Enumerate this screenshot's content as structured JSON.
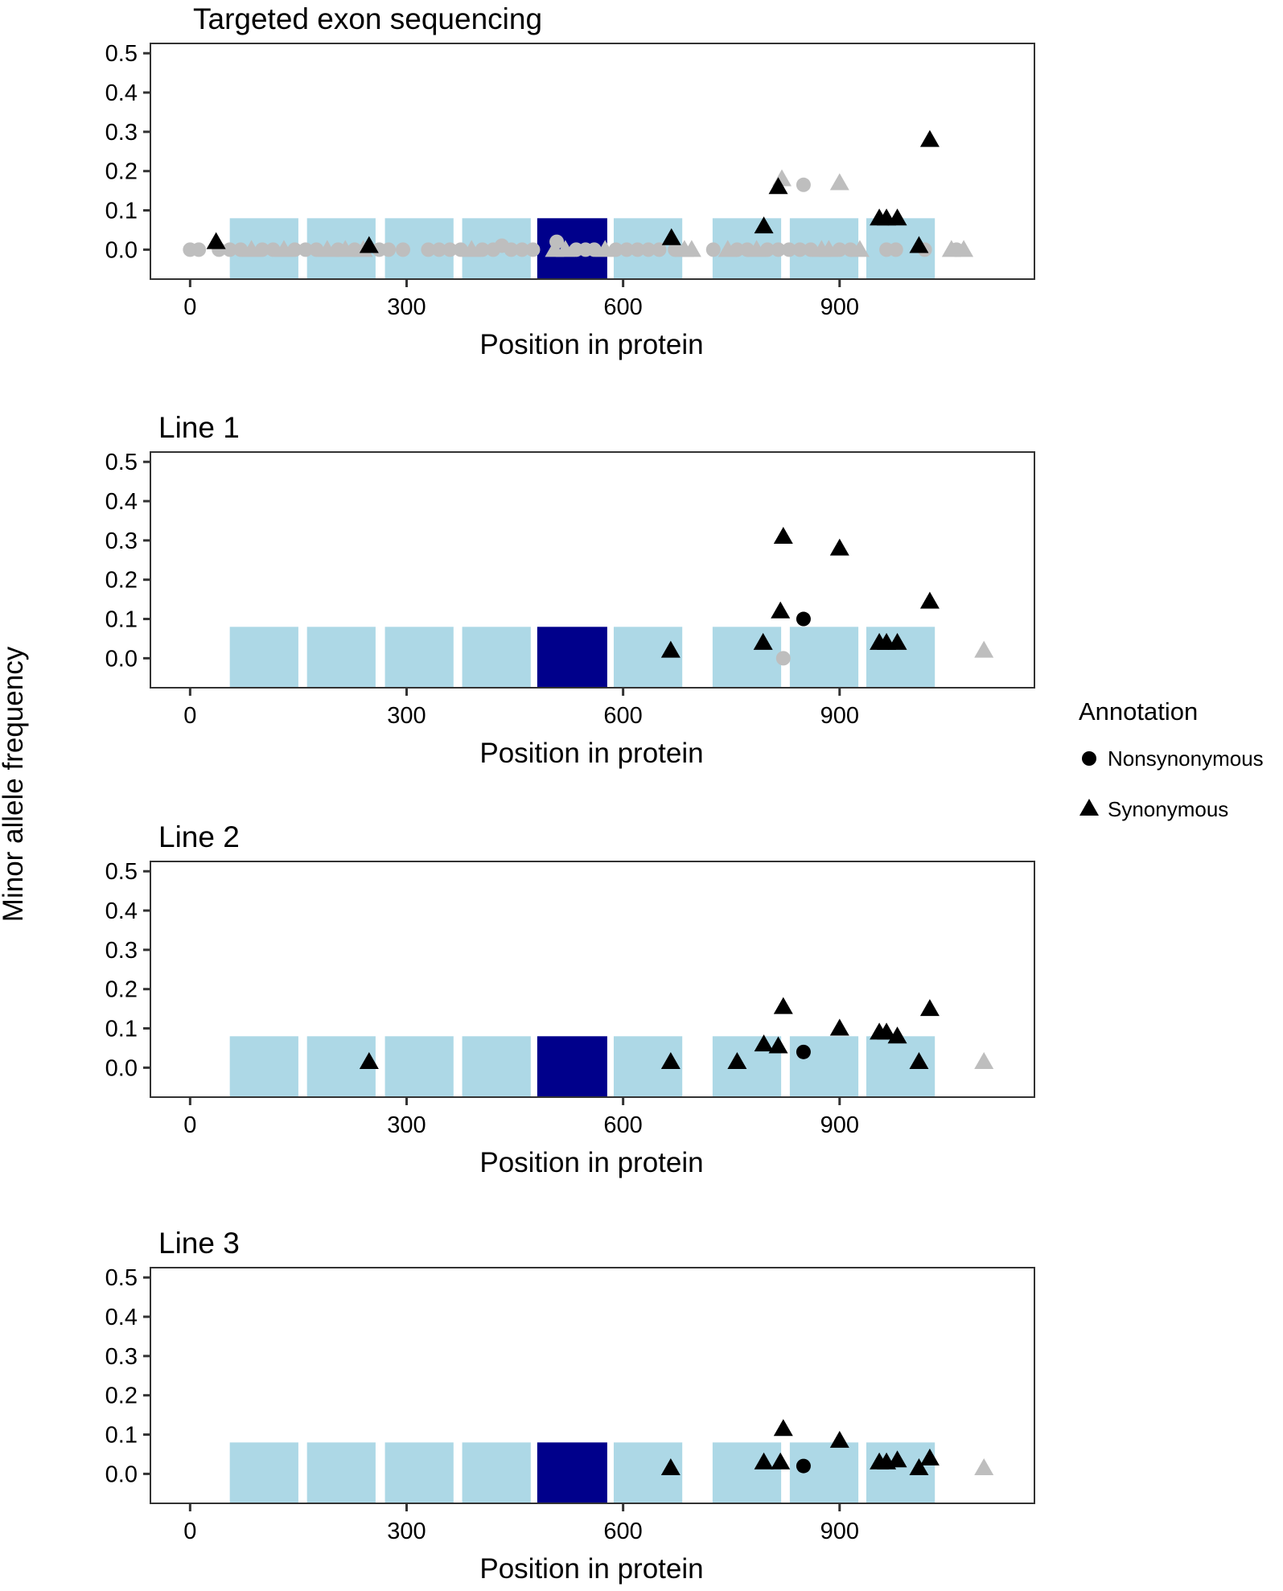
{
  "chart_data": {
    "type": "scatter",
    "ylabel": "Minor allele frequency",
    "legend": {
      "title": "Annotation",
      "position": "right",
      "entries": [
        {
          "label": "Nonsynonymous",
          "shape": "circle"
        },
        {
          "label": "Synonymous",
          "shape": "triangle"
        }
      ]
    },
    "colors": {
      "domain": "#add8e6",
      "domain_highlight": "#00008b",
      "significant": "#000000",
      "nonsignificant": "#bebebe",
      "axis": "#333333"
    },
    "domains": [
      {
        "start": 55,
        "end": 150,
        "highlight": false
      },
      {
        "start": 162,
        "end": 257,
        "highlight": false
      },
      {
        "start": 270,
        "end": 365,
        "highlight": false
      },
      {
        "start": 377,
        "end": 472,
        "highlight": false
      },
      {
        "start": 481,
        "end": 578,
        "highlight": true
      },
      {
        "start": 587,
        "end": 682,
        "highlight": false
      },
      {
        "start": 724,
        "end": 819,
        "highlight": false
      },
      {
        "start": 831,
        "end": 926,
        "highlight": false
      },
      {
        "start": 937,
        "end": 1032,
        "highlight": false
      }
    ],
    "domain_height": 0.08,
    "panels": [
      {
        "title": "Targeted exon sequencing",
        "xlabel": "Position in protein",
        "xlim": [
          -55,
          1170
        ],
        "ylim": [
          -0.075,
          0.525
        ],
        "xticks": [
          0,
          300,
          600,
          900
        ],
        "xtick_labels": [
          "0",
          "300",
          "600",
          "900"
        ],
        "yticks": [
          0.0,
          0.1,
          0.2,
          0.3,
          0.4,
          0.5
        ],
        "ytick_labels": [
          "0.0",
          "0.1",
          "0.2",
          "0.3",
          "0.4",
          "0.5"
        ],
        "points": [
          {
            "x": 0,
            "y": 0.0,
            "shape": "circle",
            "sig": false
          },
          {
            "x": 12,
            "y": 0.0,
            "shape": "circle",
            "sig": false
          },
          {
            "x": 36,
            "y": 0.02,
            "shape": "triangle",
            "sig": true
          },
          {
            "x": 40,
            "y": 0.0,
            "shape": "circle",
            "sig": false
          },
          {
            "x": 55,
            "y": 0.0,
            "shape": "circle",
            "sig": false
          },
          {
            "x": 70,
            "y": 0.0,
            "shape": "circle",
            "sig": false
          },
          {
            "x": 85,
            "y": 0.0,
            "shape": "triangle",
            "sig": false
          },
          {
            "x": 100,
            "y": 0.0,
            "shape": "circle",
            "sig": false
          },
          {
            "x": 115,
            "y": 0.0,
            "shape": "circle",
            "sig": false
          },
          {
            "x": 130,
            "y": 0.0,
            "shape": "triangle",
            "sig": false
          },
          {
            "x": 145,
            "y": 0.0,
            "shape": "circle",
            "sig": false
          },
          {
            "x": 160,
            "y": 0.0,
            "shape": "circle",
            "sig": false
          },
          {
            "x": 175,
            "y": 0.0,
            "shape": "circle",
            "sig": false
          },
          {
            "x": 190,
            "y": 0.0,
            "shape": "triangle",
            "sig": false
          },
          {
            "x": 205,
            "y": 0.0,
            "shape": "circle",
            "sig": false
          },
          {
            "x": 215,
            "y": 0.0,
            "shape": "triangle",
            "sig": false
          },
          {
            "x": 228,
            "y": 0.0,
            "shape": "circle",
            "sig": false
          },
          {
            "x": 240,
            "y": 0.0,
            "shape": "triangle",
            "sig": false
          },
          {
            "x": 248,
            "y": 0.01,
            "shape": "triangle",
            "sig": true
          },
          {
            "x": 262,
            "y": 0.0,
            "shape": "circle",
            "sig": false
          },
          {
            "x": 275,
            "y": 0.0,
            "shape": "circle",
            "sig": false
          },
          {
            "x": 295,
            "y": 0.0,
            "shape": "circle",
            "sig": false
          },
          {
            "x": 330,
            "y": 0.0,
            "shape": "circle",
            "sig": false
          },
          {
            "x": 345,
            "y": 0.0,
            "shape": "circle",
            "sig": false
          },
          {
            "x": 360,
            "y": 0.0,
            "shape": "circle",
            "sig": false
          },
          {
            "x": 375,
            "y": 0.0,
            "shape": "circle",
            "sig": false
          },
          {
            "x": 390,
            "y": 0.0,
            "shape": "triangle",
            "sig": false
          },
          {
            "x": 405,
            "y": 0.0,
            "shape": "circle",
            "sig": false
          },
          {
            "x": 420,
            "y": 0.0,
            "shape": "circle",
            "sig": false
          },
          {
            "x": 432,
            "y": 0.01,
            "shape": "circle",
            "sig": false
          },
          {
            "x": 445,
            "y": 0.0,
            "shape": "circle",
            "sig": false
          },
          {
            "x": 460,
            "y": 0.0,
            "shape": "circle",
            "sig": false
          },
          {
            "x": 475,
            "y": 0.0,
            "shape": "circle",
            "sig": false
          },
          {
            "x": 508,
            "y": 0.02,
            "shape": "circle",
            "sig": false
          },
          {
            "x": 505,
            "y": 0.0,
            "shape": "triangle",
            "sig": false
          },
          {
            "x": 520,
            "y": 0.0,
            "shape": "triangle",
            "sig": false
          },
          {
            "x": 535,
            "y": 0.0,
            "shape": "circle",
            "sig": false
          },
          {
            "x": 548,
            "y": 0.0,
            "shape": "circle",
            "sig": false
          },
          {
            "x": 560,
            "y": 0.0,
            "shape": "circle",
            "sig": false
          },
          {
            "x": 575,
            "y": 0.0,
            "shape": "triangle",
            "sig": false
          },
          {
            "x": 590,
            "y": 0.0,
            "shape": "circle",
            "sig": false
          },
          {
            "x": 605,
            "y": 0.0,
            "shape": "circle",
            "sig": false
          },
          {
            "x": 620,
            "y": 0.0,
            "shape": "circle",
            "sig": false
          },
          {
            "x": 635,
            "y": 0.0,
            "shape": "circle",
            "sig": false
          },
          {
            "x": 650,
            "y": 0.0,
            "shape": "circle",
            "sig": false
          },
          {
            "x": 667,
            "y": 0.03,
            "shape": "triangle",
            "sig": true
          },
          {
            "x": 672,
            "y": 0.0,
            "shape": "circle",
            "sig": false
          },
          {
            "x": 685,
            "y": 0.0,
            "shape": "triangle",
            "sig": false
          },
          {
            "x": 695,
            "y": 0.0,
            "shape": "triangle",
            "sig": false
          },
          {
            "x": 725,
            "y": 0.0,
            "shape": "circle",
            "sig": false
          },
          {
            "x": 745,
            "y": 0.0,
            "shape": "triangle",
            "sig": false
          },
          {
            "x": 758,
            "y": 0.0,
            "shape": "circle",
            "sig": false
          },
          {
            "x": 772,
            "y": 0.0,
            "shape": "circle",
            "sig": false
          },
          {
            "x": 785,
            "y": 0.0,
            "shape": "triangle",
            "sig": false
          },
          {
            "x": 795,
            "y": 0.06,
            "shape": "triangle",
            "sig": true
          },
          {
            "x": 800,
            "y": 0.0,
            "shape": "circle",
            "sig": false
          },
          {
            "x": 815,
            "y": 0.16,
            "shape": "triangle",
            "sig": true
          },
          {
            "x": 820,
            "y": 0.18,
            "shape": "triangle",
            "sig": false
          },
          {
            "x": 815,
            "y": 0.0,
            "shape": "circle",
            "sig": false
          },
          {
            "x": 830,
            "y": 0.0,
            "shape": "circle",
            "sig": false
          },
          {
            "x": 845,
            "y": 0.0,
            "shape": "circle",
            "sig": false
          },
          {
            "x": 850,
            "y": 0.165,
            "shape": "circle",
            "sig": false
          },
          {
            "x": 860,
            "y": 0.0,
            "shape": "circle",
            "sig": false
          },
          {
            "x": 875,
            "y": 0.0,
            "shape": "triangle",
            "sig": false
          },
          {
            "x": 885,
            "y": 0.0,
            "shape": "triangle",
            "sig": false
          },
          {
            "x": 900,
            "y": 0.17,
            "shape": "triangle",
            "sig": false
          },
          {
            "x": 900,
            "y": 0.0,
            "shape": "circle",
            "sig": false
          },
          {
            "x": 915,
            "y": 0.0,
            "shape": "circle",
            "sig": false
          },
          {
            "x": 928,
            "y": 0.0,
            "shape": "triangle",
            "sig": false
          },
          {
            "x": 955,
            "y": 0.08,
            "shape": "triangle",
            "sig": true
          },
          {
            "x": 965,
            "y": 0.08,
            "shape": "triangle",
            "sig": true
          },
          {
            "x": 980,
            "y": 0.08,
            "shape": "triangle",
            "sig": true
          },
          {
            "x": 965,
            "y": 0.0,
            "shape": "circle",
            "sig": false
          },
          {
            "x": 978,
            "y": 0.0,
            "shape": "circle",
            "sig": false
          },
          {
            "x": 1010,
            "y": 0.01,
            "shape": "triangle",
            "sig": true
          },
          {
            "x": 1018,
            "y": 0.0,
            "shape": "circle",
            "sig": false
          },
          {
            "x": 1025,
            "y": 0.28,
            "shape": "triangle",
            "sig": true
          },
          {
            "x": 1055,
            "y": 0.0,
            "shape": "triangle",
            "sig": false
          },
          {
            "x": 1062,
            "y": 0.0,
            "shape": "circle",
            "sig": false
          },
          {
            "x": 1072,
            "y": 0.0,
            "shape": "triangle",
            "sig": false
          }
        ]
      },
      {
        "title": "Line 1",
        "xlabel": "Position in protein",
        "xlim": [
          -55,
          1170
        ],
        "ylim": [
          -0.075,
          0.525
        ],
        "xticks": [
          0,
          300,
          600,
          900
        ],
        "xtick_labels": [
          "0",
          "300",
          "600",
          "900"
        ],
        "yticks": [
          0.0,
          0.1,
          0.2,
          0.3,
          0.4,
          0.5
        ],
        "ytick_labels": [
          "0.0",
          "0.1",
          "0.2",
          "0.3",
          "0.4",
          "0.5"
        ],
        "points": [
          {
            "x": 666,
            "y": 0.02,
            "shape": "triangle",
            "sig": true
          },
          {
            "x": 794,
            "y": 0.04,
            "shape": "triangle",
            "sig": true
          },
          {
            "x": 818,
            "y": 0.12,
            "shape": "triangle",
            "sig": true
          },
          {
            "x": 822,
            "y": 0.31,
            "shape": "triangle",
            "sig": true
          },
          {
            "x": 822,
            "y": 0.0,
            "shape": "circle",
            "sig": false
          },
          {
            "x": 850,
            "y": 0.1,
            "shape": "circle",
            "sig": true
          },
          {
            "x": 900,
            "y": 0.28,
            "shape": "triangle",
            "sig": true
          },
          {
            "x": 955,
            "y": 0.04,
            "shape": "triangle",
            "sig": true
          },
          {
            "x": 965,
            "y": 0.04,
            "shape": "triangle",
            "sig": true
          },
          {
            "x": 980,
            "y": 0.04,
            "shape": "triangle",
            "sig": true
          },
          {
            "x": 1025,
            "y": 0.145,
            "shape": "triangle",
            "sig": true
          },
          {
            "x": 1100,
            "y": 0.02,
            "shape": "triangle",
            "sig": false
          }
        ]
      },
      {
        "title": "Line 2",
        "xlabel": "Position in protein",
        "xlim": [
          -55,
          1170
        ],
        "ylim": [
          -0.075,
          0.525
        ],
        "xticks": [
          0,
          300,
          600,
          900
        ],
        "xtick_labels": [
          "0",
          "300",
          "600",
          "900"
        ],
        "yticks": [
          0.0,
          0.1,
          0.2,
          0.3,
          0.4,
          0.5
        ],
        "ytick_labels": [
          "0.0",
          "0.1",
          "0.2",
          "0.3",
          "0.4",
          "0.5"
        ],
        "points": [
          {
            "x": 248,
            "y": 0.015,
            "shape": "triangle",
            "sig": true
          },
          {
            "x": 666,
            "y": 0.015,
            "shape": "triangle",
            "sig": true
          },
          {
            "x": 758,
            "y": 0.015,
            "shape": "triangle",
            "sig": true
          },
          {
            "x": 795,
            "y": 0.06,
            "shape": "triangle",
            "sig": true
          },
          {
            "x": 815,
            "y": 0.055,
            "shape": "triangle",
            "sig": true
          },
          {
            "x": 822,
            "y": 0.155,
            "shape": "triangle",
            "sig": true
          },
          {
            "x": 850,
            "y": 0.04,
            "shape": "circle",
            "sig": true
          },
          {
            "x": 900,
            "y": 0.1,
            "shape": "triangle",
            "sig": true
          },
          {
            "x": 955,
            "y": 0.09,
            "shape": "triangle",
            "sig": true
          },
          {
            "x": 965,
            "y": 0.09,
            "shape": "triangle",
            "sig": true
          },
          {
            "x": 980,
            "y": 0.08,
            "shape": "triangle",
            "sig": true
          },
          {
            "x": 1010,
            "y": 0.015,
            "shape": "triangle",
            "sig": true
          },
          {
            "x": 1025,
            "y": 0.15,
            "shape": "triangle",
            "sig": true
          },
          {
            "x": 1100,
            "y": 0.015,
            "shape": "triangle",
            "sig": false
          }
        ]
      },
      {
        "title": "Line 3",
        "xlabel": "Position in protein",
        "xlim": [
          -55,
          1170
        ],
        "ylim": [
          -0.075,
          0.525
        ],
        "xticks": [
          0,
          300,
          600,
          900
        ],
        "xtick_labels": [
          "0",
          "300",
          "600",
          "900"
        ],
        "yticks": [
          0.0,
          0.1,
          0.2,
          0.3,
          0.4,
          0.5
        ],
        "ytick_labels": [
          "0.0",
          "0.1",
          "0.2",
          "0.3",
          "0.4",
          "0.5"
        ],
        "points": [
          {
            "x": 666,
            "y": 0.015,
            "shape": "triangle",
            "sig": true
          },
          {
            "x": 795,
            "y": 0.03,
            "shape": "triangle",
            "sig": true
          },
          {
            "x": 818,
            "y": 0.03,
            "shape": "triangle",
            "sig": true
          },
          {
            "x": 822,
            "y": 0.115,
            "shape": "triangle",
            "sig": true
          },
          {
            "x": 850,
            "y": 0.02,
            "shape": "circle",
            "sig": true
          },
          {
            "x": 900,
            "y": 0.085,
            "shape": "triangle",
            "sig": true
          },
          {
            "x": 955,
            "y": 0.03,
            "shape": "triangle",
            "sig": true
          },
          {
            "x": 965,
            "y": 0.03,
            "shape": "triangle",
            "sig": true
          },
          {
            "x": 980,
            "y": 0.035,
            "shape": "triangle",
            "sig": true
          },
          {
            "x": 1010,
            "y": 0.015,
            "shape": "triangle",
            "sig": true
          },
          {
            "x": 1025,
            "y": 0.04,
            "shape": "triangle",
            "sig": true
          },
          {
            "x": 1100,
            "y": 0.015,
            "shape": "triangle",
            "sig": false
          }
        ]
      }
    ]
  }
}
